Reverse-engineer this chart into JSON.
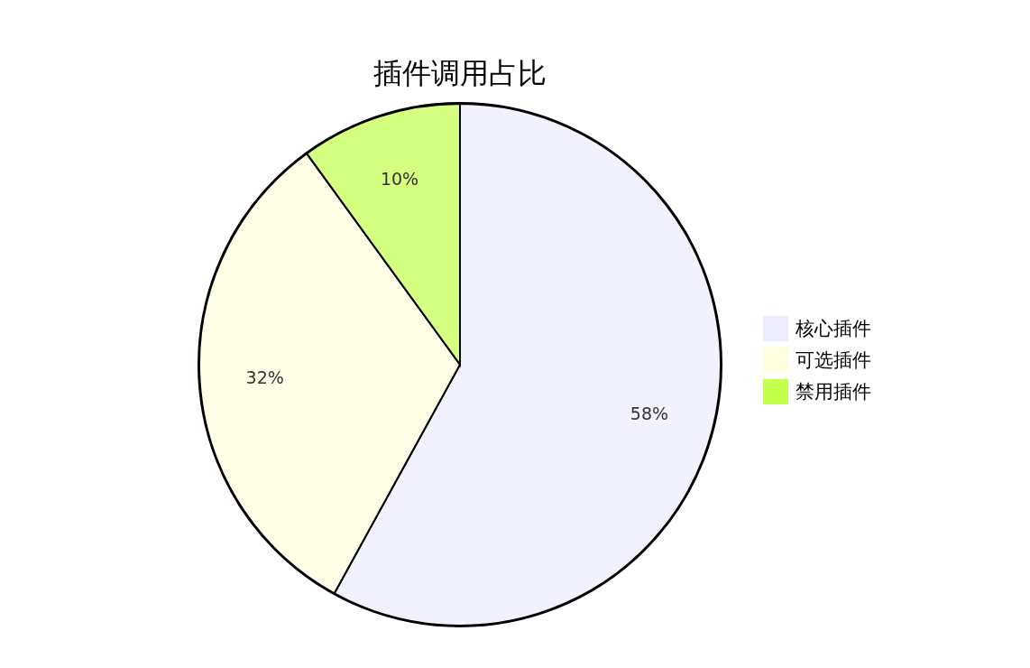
{
  "chart_data": {
    "type": "pie",
    "title": "插件调用占比",
    "categories": [
      "核心插件",
      "可选插件",
      "禁用插件"
    ],
    "values": [
      58,
      32,
      10
    ],
    "colors": [
      "#ececff",
      "#ffffde",
      "#c3ff4c"
    ],
    "value_labels": [
      "58%",
      "32%",
      "10%"
    ],
    "legend": "right"
  }
}
